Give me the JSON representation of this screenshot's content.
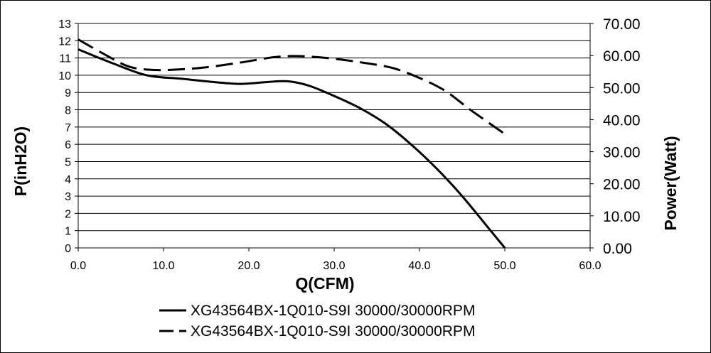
{
  "chart_data": {
    "type": "line",
    "xlabel": "Q(CFM)",
    "ylabel": "P(inH2O)",
    "y2label": "Power(Watt)",
    "xlim": [
      0,
      60
    ],
    "ylim": [
      0,
      13
    ],
    "y2lim": [
      0,
      70
    ],
    "x_ticks": [
      "0.0",
      "10.0",
      "20.0",
      "30.0",
      "40.0",
      "50.0",
      "60.0"
    ],
    "y_ticks": [
      "0",
      "1",
      "2",
      "3",
      "4",
      "5",
      "6",
      "7",
      "8",
      "9",
      "10",
      "11",
      "12",
      "13"
    ],
    "y2_ticks": [
      "0.00",
      "10.00",
      "20.00",
      "30.00",
      "40.00",
      "50.00",
      "60.00",
      "70.00"
    ],
    "grid": "horizontal",
    "legend_position": "bottom",
    "series": [
      {
        "name": "XG43564BX-1Q010-S9I 30000/30000RPM",
        "axis": "left",
        "style": "solid",
        "x": [
          0,
          4,
          8,
          12,
          16,
          19,
          22,
          24.5,
          27,
          30,
          33,
          36,
          39,
          42,
          45,
          48,
          50
        ],
        "y": [
          11.5,
          10.7,
          10.0,
          9.8,
          9.6,
          9.5,
          9.6,
          9.65,
          9.4,
          8.8,
          8.1,
          7.2,
          6.0,
          4.6,
          3.0,
          1.2,
          0
        ]
      },
      {
        "name": "XG43564BX-1Q010-S9I 30000/30000RPM",
        "axis": "right",
        "style": "dashed",
        "x": [
          0,
          3,
          6,
          9,
          12,
          15,
          19,
          23,
          26,
          30,
          34,
          37,
          40,
          43,
          46,
          50
        ],
        "y": [
          65.0,
          60.5,
          56.5,
          55.5,
          55.7,
          56.3,
          57.8,
          59.5,
          59.8,
          59.0,
          57.5,
          56.0,
          53.0,
          49.0,
          43.0,
          35.5
        ]
      }
    ]
  }
}
